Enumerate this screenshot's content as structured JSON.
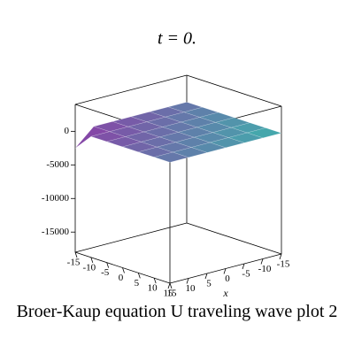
{
  "chart_data": {
    "type": "surface3d",
    "title": "t = 0.",
    "caption": "Broer-Kaup equation U traveling wave plot 2",
    "xlabel": "x",
    "x": [
      -15,
      -10,
      -5,
      0,
      5,
      10,
      15
    ],
    "y": [
      -15,
      -10,
      -5,
      0,
      5,
      10,
      15
    ],
    "z": [
      [
        0,
        0,
        0,
        0,
        0,
        0,
        -2500
      ],
      [
        0,
        0,
        0,
        0,
        0,
        0,
        0
      ],
      [
        0,
        0,
        0,
        0,
        0,
        0,
        0
      ],
      [
        0,
        0,
        0,
        0,
        0,
        0,
        0
      ],
      [
        0,
        0,
        0,
        0,
        0,
        0,
        0
      ],
      [
        0,
        0,
        0,
        0,
        0,
        0,
        0
      ],
      [
        0,
        0,
        0,
        0,
        0,
        0,
        0
      ]
    ],
    "xlim": [
      -15,
      15
    ],
    "ylim": [
      -15,
      15
    ],
    "zlim": [
      -18000,
      4000
    ],
    "xticks": [
      -15,
      -10,
      -5,
      0,
      5,
      10,
      15
    ],
    "yticks": [
      -15,
      -10,
      -5,
      0,
      5,
      10,
      15
    ],
    "zticks": [
      0,
      -5000,
      -10000,
      -15000
    ],
    "colors": [
      "#8a3fa6",
      "#3fb0ad"
    ]
  }
}
